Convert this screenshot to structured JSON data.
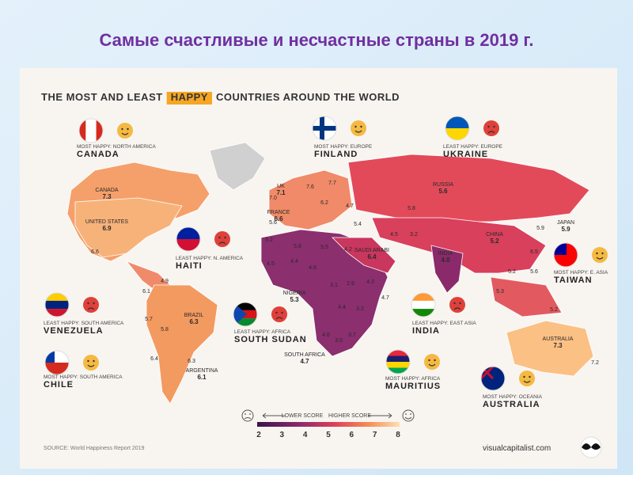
{
  "title": "Самые счастливые и несчастные страны в 2019 г.",
  "heading": {
    "before": "THE MOST AND LEAST",
    "highlight": "HAPPY",
    "after": "COUNTRIES AROUND THE WORLD"
  },
  "callouts": [
    {
      "caption": "MOST HAPPY: NORTH AMERICA",
      "country": "CANADA"
    },
    {
      "caption": "MOST HAPPY: EUROPE",
      "country": "FINLAND"
    },
    {
      "caption": "LEAST HAPPY: EUROPE",
      "country": "UKRAINE"
    },
    {
      "caption": "LEAST HAPPY: N. AMERICA",
      "country": "HAITI"
    },
    {
      "caption": "MOST HAPPY: E. ASIA",
      "country": "TAIWAN"
    },
    {
      "caption": "LEAST HAPPY: SOUTH AMERICA",
      "country": "VENEZUELA"
    },
    {
      "caption": "LEAST HAPPY: AFRICA",
      "country": "SOUTH SUDAN"
    },
    {
      "caption": "LEAST HAPPY: EAST ASIA",
      "country": "INDIA"
    },
    {
      "caption": "MOST HAPPY: SOUTH AMERICA",
      "country": "CHILE"
    },
    {
      "caption": "MOST HAPPY: AFRICA",
      "country": "MAURITIUS"
    },
    {
      "caption": "MOST HAPPY: OCEANIA",
      "country": "AUSTRALIA"
    }
  ],
  "map_labels": [
    {
      "name": "CANADA",
      "score": "7.3"
    },
    {
      "name": "UNITED STATES",
      "score": "6.9"
    },
    {
      "score": "6.6"
    },
    {
      "score": "4.9"
    },
    {
      "score": "6.1"
    },
    {
      "score": "5.7"
    },
    {
      "score": "5.8"
    },
    {
      "name": "BRAZIL",
      "score": "6.3"
    },
    {
      "score": "6.4"
    },
    {
      "score": "6.3"
    },
    {
      "name": "ARGENTINA",
      "score": "6.1"
    },
    {
      "name": "UK",
      "score": "7.1"
    },
    {
      "score": "7.0"
    },
    {
      "name": "FRANCE",
      "score": "6.6"
    },
    {
      "score": "5.6"
    },
    {
      "score": "7.6"
    },
    {
      "score": "7.7"
    },
    {
      "score": "6.2"
    },
    {
      "score": "4.7"
    },
    {
      "name": "RUSSIA",
      "score": "5.6"
    },
    {
      "score": "5.8"
    },
    {
      "name": "CHINA",
      "score": "5.2"
    },
    {
      "name": "JAPAN",
      "score": "5.9"
    },
    {
      "score": "5.9"
    },
    {
      "score": "6.5"
    },
    {
      "score": "5.2"
    },
    {
      "score": "5.6"
    },
    {
      "score": "5.3"
    },
    {
      "score": "5.2"
    },
    {
      "name": "INDIA",
      "score": "4.0"
    },
    {
      "score": "3.2"
    },
    {
      "score": "4.5"
    },
    {
      "score": "5.4"
    },
    {
      "name": "SAUDI ARABI",
      "score": "6.4"
    },
    {
      "score": "4.2"
    },
    {
      "score": "5.5"
    },
    {
      "score": "5.2"
    },
    {
      "score": "4.5"
    },
    {
      "score": "4.4"
    },
    {
      "score": "4.6"
    },
    {
      "score": "5.8"
    },
    {
      "name": "NIGERIA",
      "score": "5.3"
    },
    {
      "score": "3.1"
    },
    {
      "score": "2.9"
    },
    {
      "score": "4.3"
    },
    {
      "score": "4.7"
    },
    {
      "score": "3.2"
    },
    {
      "score": "4.4"
    },
    {
      "score": "4.6"
    },
    {
      "score": "3.5"
    },
    {
      "score": "3.7"
    },
    {
      "name": "SOUTH AFRICA",
      "score": "4.7"
    },
    {
      "name": "AUSTRALIA",
      "score": "7.3"
    },
    {
      "score": "7.2"
    }
  ],
  "legend": {
    "lower": "LOWER SCORE",
    "higher": "HIGHER SCORE",
    "ticks": [
      2,
      3,
      4,
      5,
      6,
      7,
      8
    ]
  },
  "source": "SOURCE: World Happiness Report 2019",
  "brand": "visualcapitalist.com"
}
